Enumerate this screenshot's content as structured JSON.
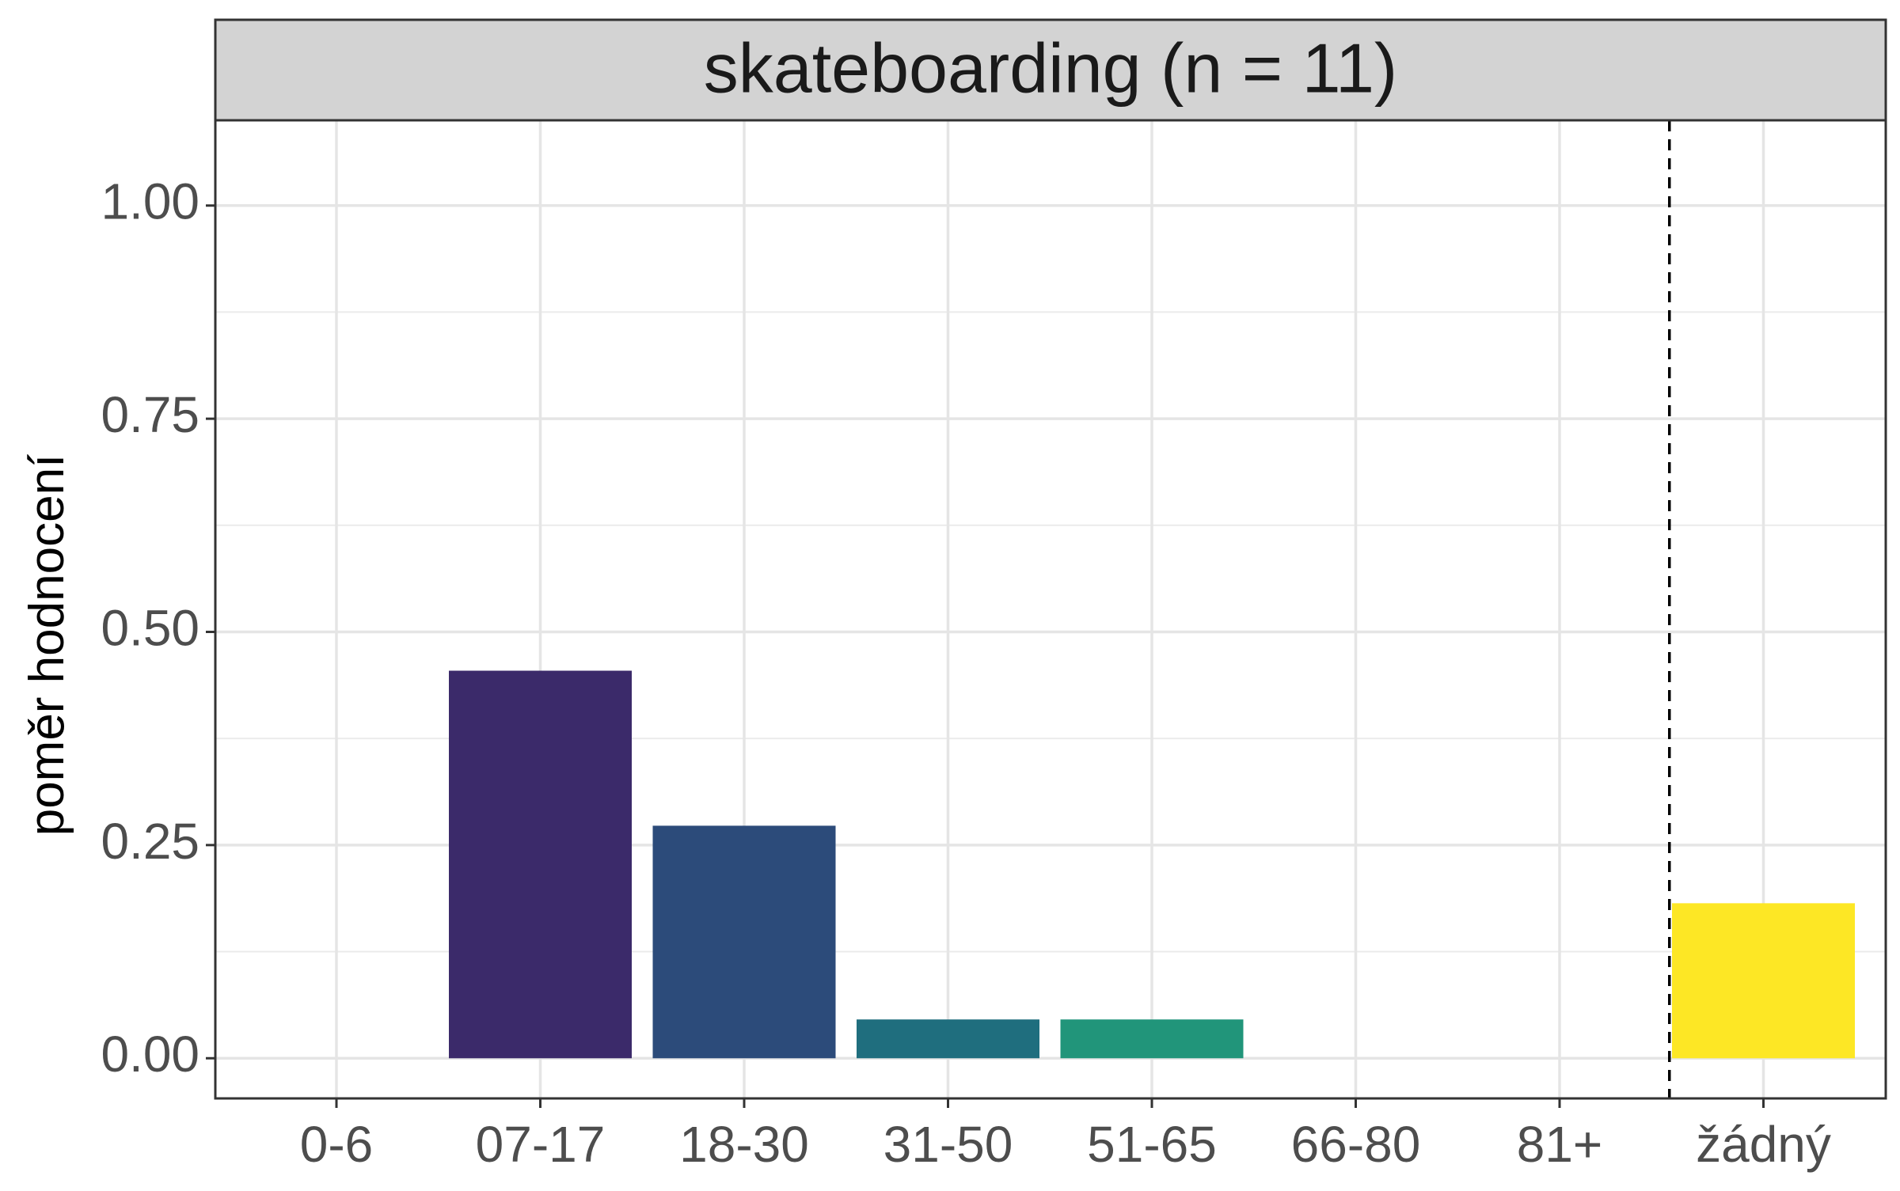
{
  "chart_data": {
    "type": "bar",
    "title": "skateboarding (n = 11)",
    "xlabel": "",
    "ylabel": "poměr hodnocení",
    "categories": [
      "0-6",
      "07-17",
      "18-30",
      "31-50",
      "51-65",
      "66-80",
      "81+",
      "žádný"
    ],
    "values": [
      0,
      0.4545,
      0.2727,
      0.0455,
      0.0455,
      0,
      0,
      0.1818
    ],
    "colors": [
      "#440154",
      "#3B2A6A",
      "#2C4B7A",
      "#1F6E7E",
      "#21957A",
      "#3FBC73",
      "#84D44B",
      "#FDE725"
    ],
    "ylim": [
      -0.0471,
      1.1
    ],
    "yticks": [
      0,
      0.25,
      0.5,
      0.75,
      1.0
    ],
    "ytick_labels": [
      "0.00",
      "0.25",
      "0.50",
      "0.75",
      "1.00"
    ],
    "reference_line": {
      "type": "vertical",
      "position_between": [
        "81+",
        "žádný"
      ],
      "style": "dashed"
    },
    "grid": true,
    "legend": "none",
    "theme": "bw",
    "strip_color": "#D3D3D3"
  }
}
